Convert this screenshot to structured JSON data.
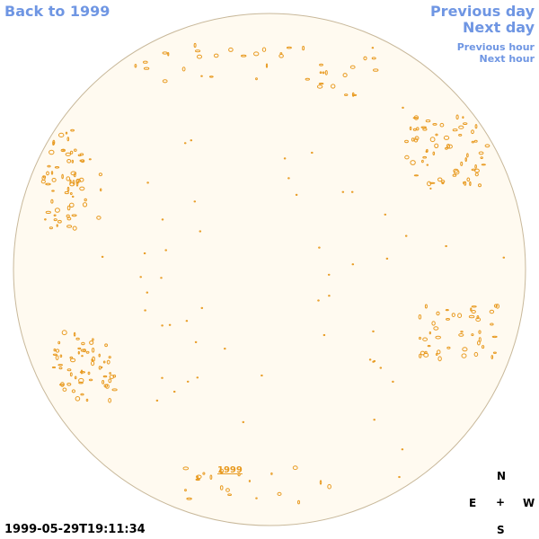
{
  "nav": {
    "back": "Back to 1999",
    "previous_day": "Previous day",
    "next_day": "Next day",
    "previous_hour": "Previous hour",
    "next_hour": "Next hour"
  },
  "timestamp": "1999-05-29T19:11:34",
  "year_link": "1999",
  "compass": {
    "north": "N",
    "east": "E",
    "center": "+",
    "west": "W",
    "south": "S"
  },
  "colors": {
    "link": "#6f96e3",
    "disk_fill": "#fffaf0",
    "disk_stroke": "#c8b89a",
    "contour": "#e89a20"
  }
}
